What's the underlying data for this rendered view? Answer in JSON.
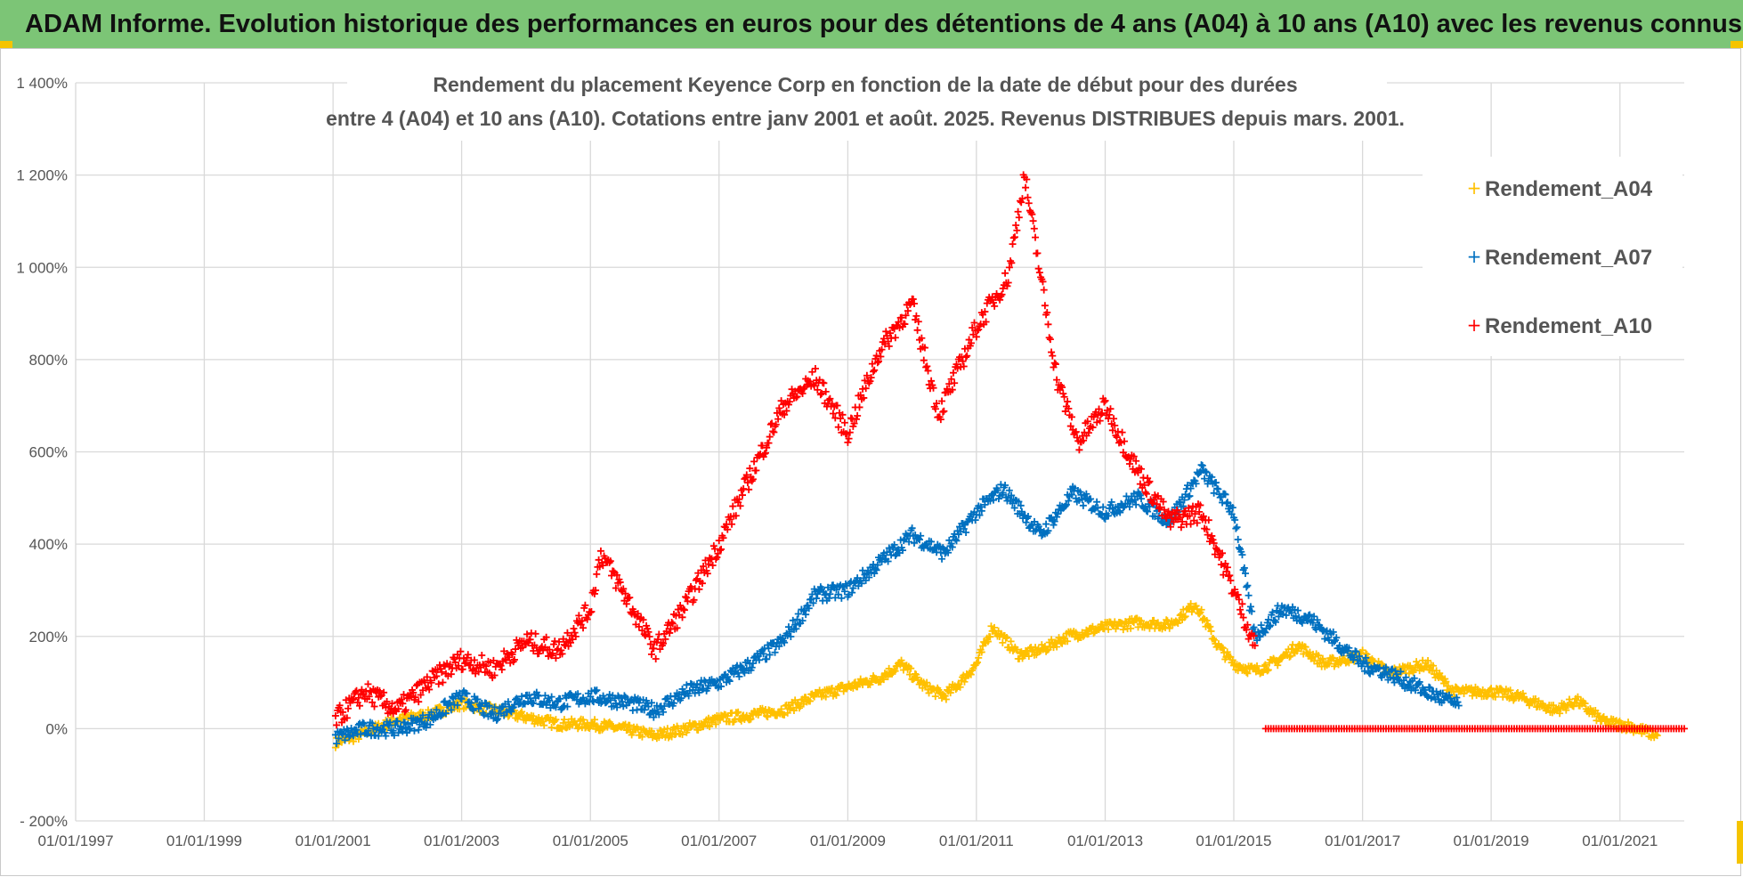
{
  "header": {
    "banner_title": "ADAM Informe. Evolution historique des performances en euros pour des détentions de 4 ans (A04) à 10 ans (A10) avec les revenus connus distribués"
  },
  "chart_data": {
    "type": "scatter",
    "title_lines": [
      "Rendement du placement Keyence Corp en fonction de la date de début pour des durées",
      "entre 4 (A04) et 10 ans (A10). Cotations entre janv 2001 et août. 2025. Revenus DISTRIBUES depuis mars. 2001."
    ],
    "xlabel": "",
    "ylabel": "",
    "x_range": [
      "1997-01-01",
      "2022-01-01"
    ],
    "y_range": [
      -200,
      1400
    ],
    "y_ticks": [
      -200,
      0,
      200,
      400,
      600,
      800,
      1000,
      1200,
      1400
    ],
    "y_tick_labels": [
      "- 200%",
      "0%",
      "200%",
      "400%",
      "600%",
      "800%",
      "1 000%",
      "1 200%",
      "1 400%"
    ],
    "x_ticks": [
      "1997-01-01",
      "1999-01-01",
      "2001-01-01",
      "2003-01-01",
      "2005-01-01",
      "2007-01-01",
      "2009-01-01",
      "2011-01-01",
      "2013-01-01",
      "2015-01-01",
      "2017-01-01",
      "2019-01-01",
      "2021-01-01"
    ],
    "x_tick_labels": [
      "01/01/1997",
      "01/01/1999",
      "01/01/2001",
      "01/01/2003",
      "01/01/2005",
      "01/01/2007",
      "01/01/2009",
      "01/01/2011",
      "01/01/2013",
      "01/01/2015",
      "01/01/2017",
      "01/01/2019",
      "01/01/2021"
    ],
    "grid": true,
    "legend_position": "top-right",
    "marker": "+",
    "series": [
      {
        "name": "Rendement_A04",
        "color": "#ffc000",
        "points": [
          [
            "2001-01-15",
            -30
          ],
          [
            "2001-07-01",
            -10
          ],
          [
            "2002-01-01",
            20
          ],
          [
            "2002-07-01",
            30
          ],
          [
            "2003-01-01",
            55
          ],
          [
            "2003-07-01",
            40
          ],
          [
            "2004-01-01",
            25
          ],
          [
            "2004-07-01",
            10
          ],
          [
            "2005-01-01",
            10
          ],
          [
            "2005-07-01",
            0
          ],
          [
            "2006-01-01",
            -15
          ],
          [
            "2006-07-01",
            0
          ],
          [
            "2007-01-01",
            20
          ],
          [
            "2007-07-01",
            30
          ],
          [
            "2008-01-01",
            40
          ],
          [
            "2008-07-01",
            70
          ],
          [
            "2009-01-01",
            90
          ],
          [
            "2009-07-01",
            110
          ],
          [
            "2009-11-01",
            140
          ],
          [
            "2010-03-01",
            95
          ],
          [
            "2010-07-01",
            70
          ],
          [
            "2010-10-01",
            100
          ],
          [
            "2011-01-01",
            140
          ],
          [
            "2011-04-01",
            220
          ],
          [
            "2011-09-01",
            160
          ],
          [
            "2012-01-01",
            170
          ],
          [
            "2012-06-01",
            200
          ],
          [
            "2013-01-01",
            220
          ],
          [
            "2013-07-01",
            230
          ],
          [
            "2014-01-01",
            225
          ],
          [
            "2014-06-01",
            270
          ],
          [
            "2014-10-01",
            180
          ],
          [
            "2015-01-01",
            140
          ],
          [
            "2015-05-01",
            125
          ],
          [
            "2015-09-01",
            145
          ],
          [
            "2016-01-01",
            180
          ],
          [
            "2016-06-01",
            140
          ],
          [
            "2017-01-01",
            160
          ],
          [
            "2017-06-01",
            120
          ],
          [
            "2018-01-01",
            140
          ],
          [
            "2018-06-01",
            80
          ],
          [
            "2019-01-01",
            80
          ],
          [
            "2019-06-01",
            70
          ],
          [
            "2020-01-01",
            40
          ],
          [
            "2020-05-01",
            60
          ],
          [
            "2020-10-01",
            15
          ],
          [
            "2021-03-01",
            5
          ],
          [
            "2021-08-01",
            -15
          ]
        ]
      },
      {
        "name": "Rendement_A07",
        "color": "#0070c0",
        "points": [
          [
            "2001-01-15",
            -20
          ],
          [
            "2001-07-01",
            0
          ],
          [
            "2002-01-01",
            0
          ],
          [
            "2002-07-01",
            20
          ],
          [
            "2003-01-01",
            70
          ],
          [
            "2003-07-01",
            30
          ],
          [
            "2004-01-01",
            70
          ],
          [
            "2004-07-01",
            55
          ],
          [
            "2005-01-01",
            70
          ],
          [
            "2005-07-01",
            60
          ],
          [
            "2006-01-01",
            40
          ],
          [
            "2006-07-01",
            80
          ],
          [
            "2007-01-01",
            100
          ],
          [
            "2007-07-01",
            140
          ],
          [
            "2008-01-01",
            190
          ],
          [
            "2008-07-01",
            290
          ],
          [
            "2009-01-01",
            300
          ],
          [
            "2009-07-01",
            360
          ],
          [
            "2010-01-01",
            420
          ],
          [
            "2010-07-01",
            380
          ],
          [
            "2011-01-01",
            470
          ],
          [
            "2011-06-01",
            520
          ],
          [
            "2012-01-01",
            420
          ],
          [
            "2012-07-01",
            510
          ],
          [
            "2013-01-01",
            470
          ],
          [
            "2013-07-01",
            500
          ],
          [
            "2014-01-01",
            450
          ],
          [
            "2014-07-01",
            560
          ],
          [
            "2015-01-01",
            470
          ],
          [
            "2015-05-01",
            200
          ],
          [
            "2015-10-01",
            260
          ],
          [
            "2016-03-01",
            240
          ],
          [
            "2016-07-01",
            200
          ],
          [
            "2017-01-01",
            140
          ],
          [
            "2017-06-01",
            120
          ],
          [
            "2018-01-01",
            80
          ],
          [
            "2018-07-01",
            50
          ]
        ]
      },
      {
        "name": "Rendement_A10",
        "color": "#ff0000",
        "points": [
          [
            "2001-01-15",
            20
          ],
          [
            "2001-07-01",
            80
          ],
          [
            "2002-01-01",
            40
          ],
          [
            "2002-07-01",
            100
          ],
          [
            "2003-01-01",
            150
          ],
          [
            "2003-07-01",
            130
          ],
          [
            "2004-01-01",
            190
          ],
          [
            "2004-07-01",
            170
          ],
          [
            "2005-01-01",
            260
          ],
          [
            "2005-03-01",
            380
          ],
          [
            "2005-07-01",
            300
          ],
          [
            "2006-01-01",
            170
          ],
          [
            "2006-07-01",
            270
          ],
          [
            "2007-01-01",
            400
          ],
          [
            "2007-07-01",
            550
          ],
          [
            "2008-01-01",
            700
          ],
          [
            "2008-07-01",
            760
          ],
          [
            "2009-01-01",
            640
          ],
          [
            "2009-07-01",
            820
          ],
          [
            "2010-01-01",
            920
          ],
          [
            "2010-06-01",
            680
          ],
          [
            "2011-01-01",
            870
          ],
          [
            "2011-07-01",
            980
          ],
          [
            "2011-10-01",
            1200
          ],
          [
            "2012-01-01",
            980
          ],
          [
            "2012-04-01",
            760
          ],
          [
            "2012-08-01",
            620
          ],
          [
            "2013-01-01",
            700
          ],
          [
            "2013-07-01",
            560
          ],
          [
            "2014-01-01",
            450
          ],
          [
            "2014-07-01",
            470
          ],
          [
            "2015-01-01",
            300
          ],
          [
            "2015-05-01",
            180
          ]
        ],
        "flat_segment": {
          "from": "2015-07-01",
          "to": "2022-01-01",
          "value": 0
        }
      }
    ]
  }
}
